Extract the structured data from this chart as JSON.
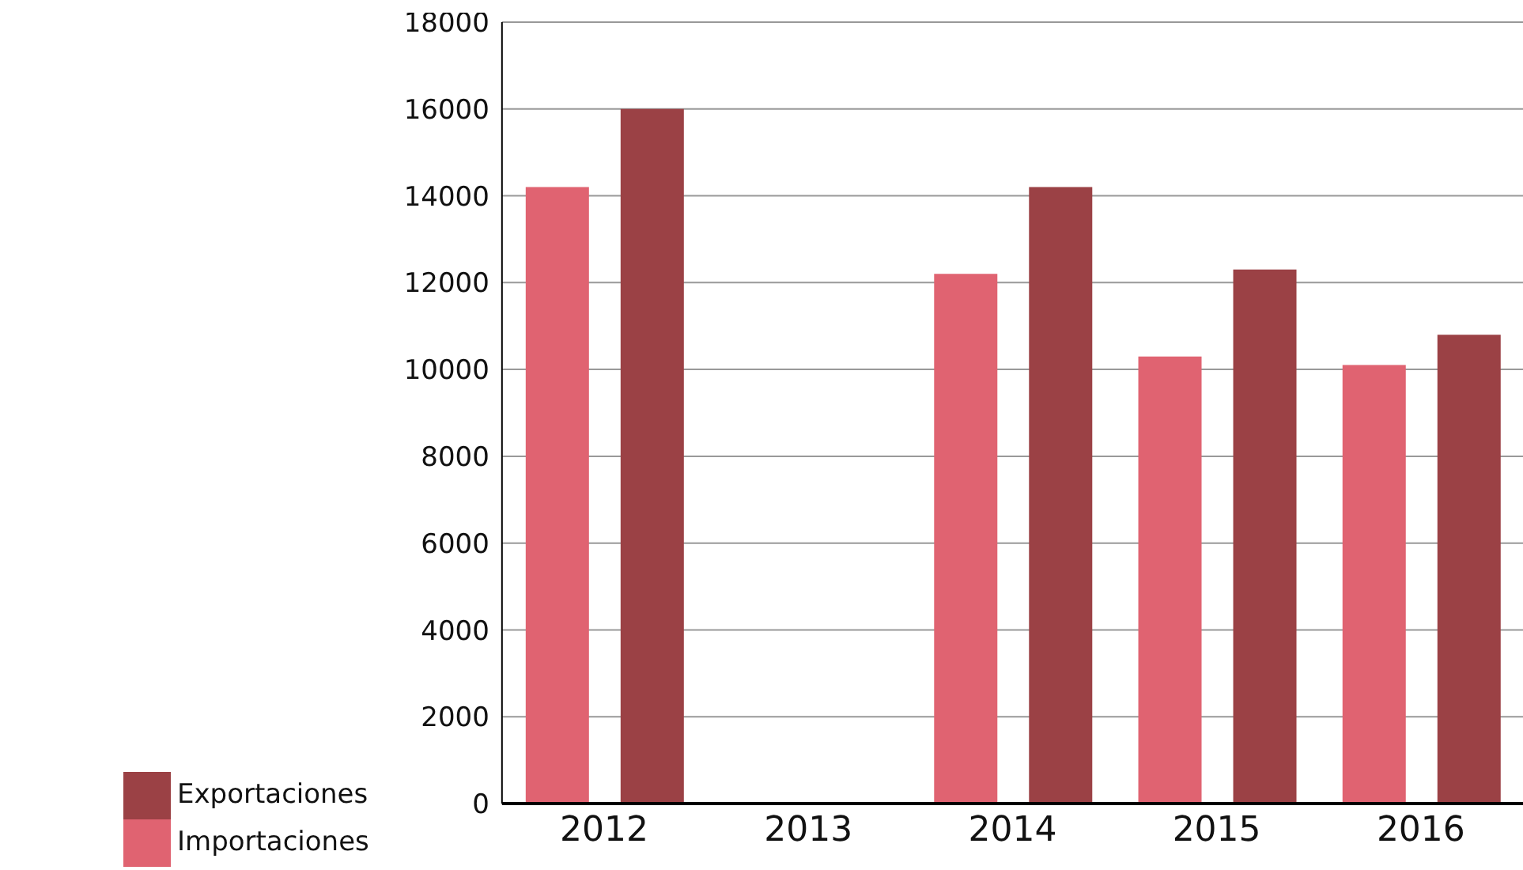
{
  "chart_data": {
    "type": "bar",
    "categories": [
      "2012",
      "2013",
      "2014",
      "2015",
      "2016"
    ],
    "series": [
      {
        "name": "Importaciones",
        "color": "#e06371",
        "values": [
          14200,
          null,
          12200,
          10300,
          10100
        ]
      },
      {
        "name": "Exportaciones",
        "color": "#9b4145",
        "values": [
          16000,
          null,
          14200,
          12300,
          10800
        ]
      }
    ],
    "ylim": [
      0,
      18000
    ],
    "yticks": [
      0,
      2000,
      4000,
      6000,
      8000,
      10000,
      12000,
      14000,
      16000,
      18000
    ],
    "grid": "y",
    "legend": "bottom left"
  }
}
